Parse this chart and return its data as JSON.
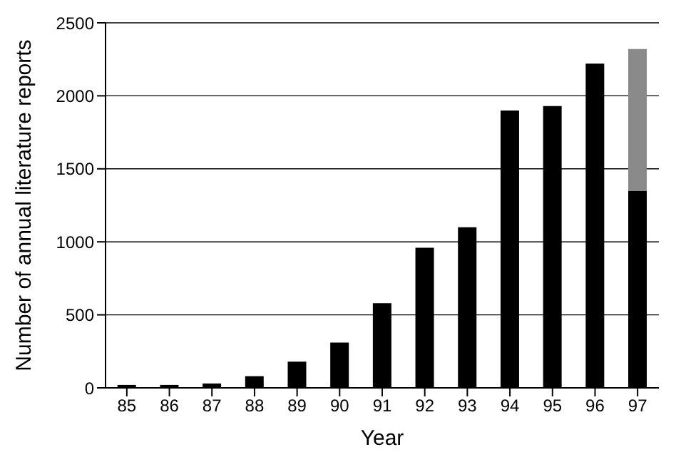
{
  "chart_data": {
    "type": "bar",
    "xlabel": "Year",
    "ylabel": "Number of annual literature reports",
    "categories": [
      "85",
      "86",
      "87",
      "88",
      "89",
      "90",
      "91",
      "92",
      "93",
      "94",
      "95",
      "96",
      "97"
    ],
    "series": [
      {
        "color": "#000000",
        "values": [
          20,
          20,
          30,
          80,
          180,
          310,
          580,
          960,
          1100,
          1900,
          1930,
          2220,
          1350
        ]
      },
      {
        "color": "#8a8a8a",
        "values": [
          null,
          null,
          null,
          null,
          null,
          null,
          null,
          null,
          null,
          null,
          null,
          null,
          970
        ]
      }
    ],
    "stacked": true,
    "ylim": [
      0,
      2500
    ],
    "yticks": [
      0,
      500,
      1000,
      1500,
      2000,
      2500
    ],
    "grid": "y",
    "legend": false
  }
}
